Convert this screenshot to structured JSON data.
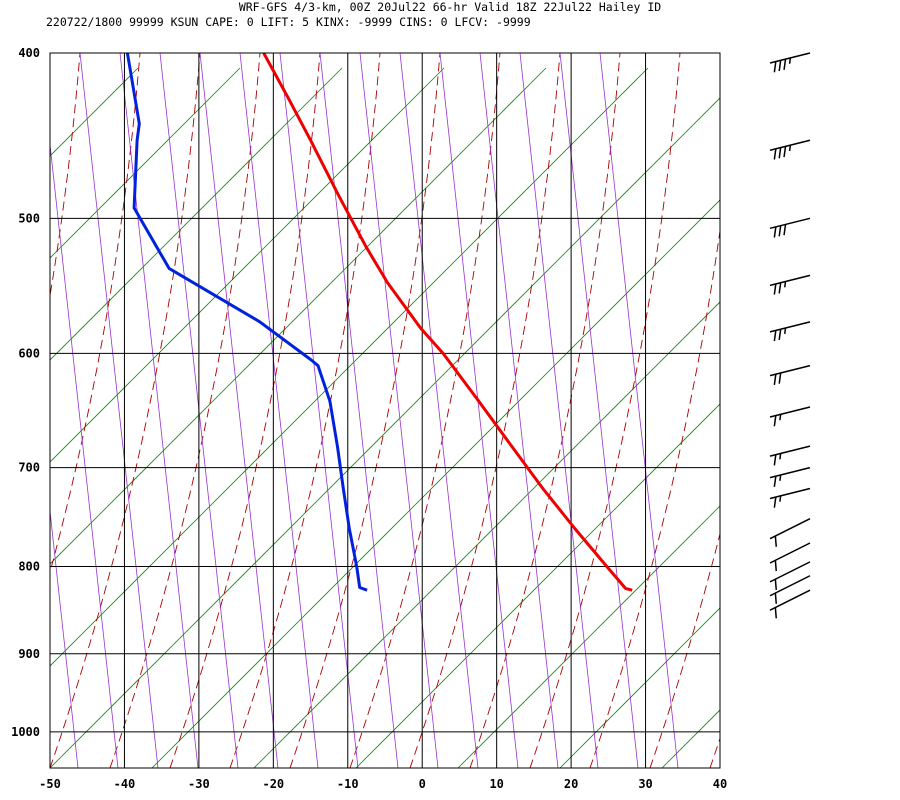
{
  "header": {
    "title_line": "WRF-GFS 4/3-km, 00Z 20Jul22 66-hr Valid 18Z 22Jul22 Hailey ID",
    "station_line": "220722/1800 99999  KSUN    CAPE:     0 LIFT:     5 KINX: -9999 CINS:     0 LFCV: -9999"
  },
  "chart_data": {
    "type": "line",
    "title": "WRF-GFS 4/3-km, 00Z 20Jul22 66-hr Valid 18Z 22Jul22 Hailey ID",
    "xlabel": "",
    "ylabel": "",
    "x_ticks": [
      "-50",
      "-40",
      "-30",
      "-20",
      "-10",
      "0",
      "10",
      "20",
      "30",
      "40"
    ],
    "y_ticks": [
      "400",
      "500",
      "600",
      "700",
      "800",
      "900",
      "1000"
    ],
    "xlim": [
      -50,
      40
    ],
    "ylim_pressure_hpa": [
      1050,
      400
    ],
    "y_scale": "log",
    "grid": true,
    "skew": "skew-T",
    "colors": {
      "temperature": "#ee0000",
      "dewpoint": "#0022dd",
      "dry_adiabat": "#009000",
      "moist_adiabat": "#aa0000",
      "mixing_ratio": "#9933cc",
      "grid": "#000000"
    },
    "series": [
      {
        "role": "temperature",
        "points": [
          {
            "p": 826,
            "x": 28.2
          },
          {
            "p": 824,
            "x": 27.3
          },
          {
            "p": 800,
            "x": 24.8
          },
          {
            "p": 760,
            "x": 20.5
          },
          {
            "p": 720,
            "x": 16.2
          },
          {
            "p": 680,
            "x": 12.0
          },
          {
            "p": 640,
            "x": 7.6
          },
          {
            "p": 600,
            "x": 2.8
          },
          {
            "p": 580,
            "x": -0.2
          },
          {
            "p": 545,
            "x": -4.7
          },
          {
            "p": 520,
            "x": -7.5
          },
          {
            "p": 485,
            "x": -11.2
          },
          {
            "p": 450,
            "x": -15.0
          },
          {
            "p": 425,
            "x": -18.0
          },
          {
            "p": 400,
            "x": -21.3
          }
        ]
      },
      {
        "role": "dewpoint",
        "points": [
          {
            "p": 826,
            "x": -7.4
          },
          {
            "p": 823,
            "x": -8.4
          },
          {
            "p": 800,
            "x": -8.8
          },
          {
            "p": 760,
            "x": -9.8
          },
          {
            "p": 720,
            "x": -10.6
          },
          {
            "p": 680,
            "x": -11.4
          },
          {
            "p": 640,
            "x": -12.4
          },
          {
            "p": 610,
            "x": -14.0
          },
          {
            "p": 605,
            "x": -15.0
          },
          {
            "p": 575,
            "x": -21.8
          },
          {
            "p": 535,
            "x": -34.0
          },
          {
            "p": 493,
            "x": -38.7
          },
          {
            "p": 450,
            "x": -38.3
          },
          {
            "p": 440,
            "x": -38.0
          },
          {
            "p": 400,
            "x": -39.6
          }
        ]
      }
    ],
    "wind_barbs": [
      {
        "p": 400,
        "speed_kt": 35,
        "dir_deg": 250
      },
      {
        "p": 450,
        "speed_kt": 35,
        "dir_deg": 250
      },
      {
        "p": 500,
        "speed_kt": 30,
        "dir_deg": 250
      },
      {
        "p": 540,
        "speed_kt": 25,
        "dir_deg": 250
      },
      {
        "p": 575,
        "speed_kt": 25,
        "dir_deg": 255
      },
      {
        "p": 610,
        "speed_kt": 20,
        "dir_deg": 260
      },
      {
        "p": 645,
        "speed_kt": 15,
        "dir_deg": 255
      },
      {
        "p": 680,
        "speed_kt": 15,
        "dir_deg": 245
      },
      {
        "p": 700,
        "speed_kt": 15,
        "dir_deg": 240
      },
      {
        "p": 720,
        "speed_kt": 15,
        "dir_deg": 235
      },
      {
        "p": 750,
        "speed_kt": 10,
        "dir_deg": 230
      },
      {
        "p": 775,
        "speed_kt": 10,
        "dir_deg": 225
      },
      {
        "p": 795,
        "speed_kt": 10,
        "dir_deg": 222
      },
      {
        "p": 810,
        "speed_kt": 10,
        "dir_deg": 220
      },
      {
        "p": 826,
        "speed_kt": 10,
        "dir_deg": 215
      }
    ]
  }
}
